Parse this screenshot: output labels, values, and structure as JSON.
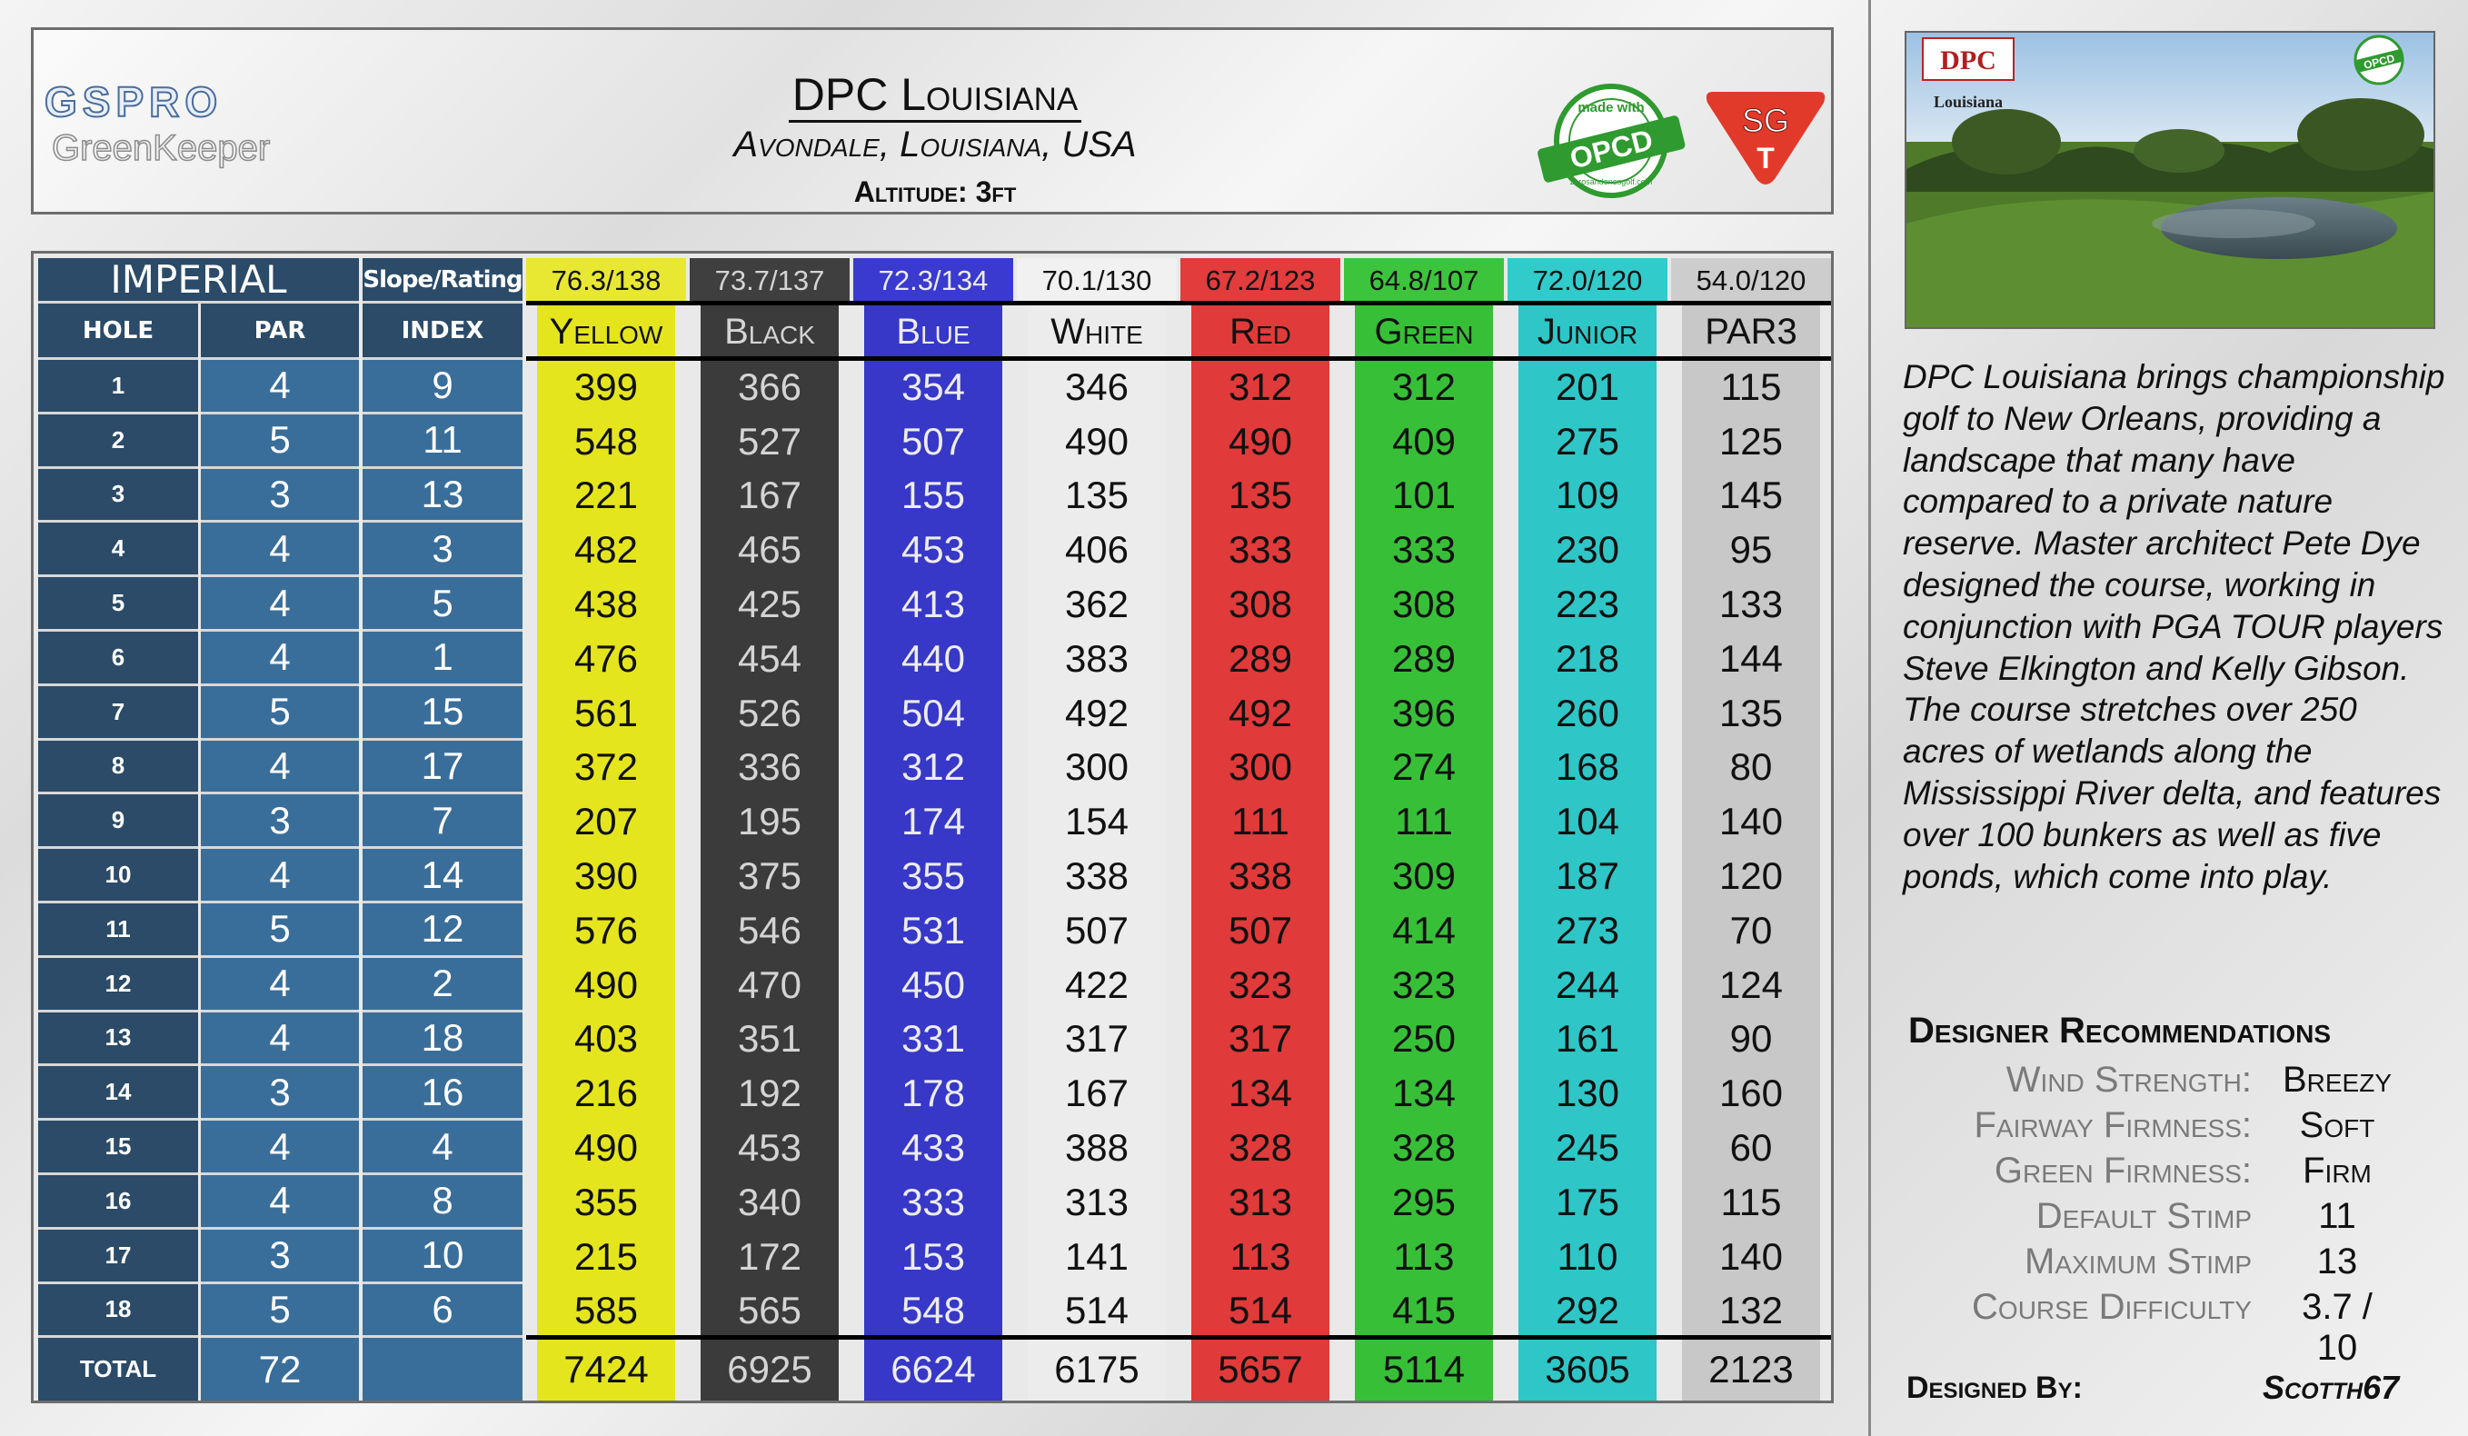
{
  "branding": {
    "gspro": "GSPRO",
    "greenkeeper": "GreenKeeper",
    "opcd_top": "made with",
    "opcd_main": "OPCD",
    "opcd_bottom": "zerosandonesgolf.com",
    "sgt_top": "SG",
    "sgt_bottom": "T"
  },
  "course": {
    "name": "DPC Louisiana",
    "location": "Avondale, Louisiana, USA",
    "altitude": "Altitude: 3ft"
  },
  "table": {
    "unit_label": "IMPERIAL",
    "slope_label": "Slope/Rating",
    "col_hole": "HOLE",
    "col_par": "PAR",
    "col_index": "INDEX",
    "total_label": "TOTAL",
    "total_par": "72",
    "holes": [
      "1",
      "2",
      "3",
      "4",
      "5",
      "6",
      "7",
      "8",
      "9",
      "10",
      "11",
      "12",
      "13",
      "14",
      "15",
      "16",
      "17",
      "18"
    ],
    "pars": [
      "4",
      "5",
      "3",
      "4",
      "4",
      "4",
      "5",
      "4",
      "3",
      "4",
      "5",
      "4",
      "4",
      "3",
      "4",
      "4",
      "3",
      "5"
    ],
    "indexes": [
      "9",
      "11",
      "13",
      "3",
      "5",
      "1",
      "15",
      "17",
      "7",
      "14",
      "12",
      "2",
      "18",
      "16",
      "4",
      "8",
      "10",
      "6"
    ],
    "tees": [
      {
        "name": "Yellow",
        "rating": "76.3/138",
        "total": "7424",
        "band": "#e5e51e",
        "header_bg": "#e8e832",
        "text": "#111111",
        "yards": [
          "399",
          "548",
          "221",
          "482",
          "438",
          "476",
          "561",
          "372",
          "207",
          "390",
          "576",
          "490",
          "403",
          "216",
          "490",
          "355",
          "215",
          "585"
        ]
      },
      {
        "name": "Black",
        "rating": "73.7/137",
        "total": "6925",
        "band": "#3b3b3b",
        "header_bg": "#3f3f3f",
        "text": "#d4d4d4",
        "yards": [
          "366",
          "527",
          "167",
          "465",
          "425",
          "454",
          "526",
          "336",
          "195",
          "375",
          "546",
          "470",
          "351",
          "192",
          "453",
          "340",
          "172",
          "565"
        ]
      },
      {
        "name": "Blue",
        "rating": "72.3/134",
        "total": "6624",
        "band": "#3737c8",
        "header_bg": "#3a3ad0",
        "text": "#ececec",
        "yards": [
          "354",
          "507",
          "155",
          "453",
          "413",
          "440",
          "504",
          "312",
          "174",
          "355",
          "531",
          "450",
          "331",
          "178",
          "433",
          "333",
          "153",
          "548"
        ]
      },
      {
        "name": "White",
        "rating": "70.1/130",
        "total": "6175",
        "band": "#ececec",
        "header_bg": "#f1f1f1",
        "text": "#111111",
        "yards": [
          "346",
          "490",
          "135",
          "406",
          "362",
          "383",
          "492",
          "300",
          "154",
          "338",
          "507",
          "422",
          "317",
          "167",
          "388",
          "313",
          "141",
          "514"
        ]
      },
      {
        "name": "Red",
        "rating": "67.2/123",
        "total": "5657",
        "band": "#e03a3a",
        "header_bg": "#e23c3c",
        "text": "#111111",
        "yards": [
          "312",
          "490",
          "135",
          "333",
          "308",
          "289",
          "492",
          "300",
          "111",
          "338",
          "507",
          "323",
          "317",
          "134",
          "328",
          "313",
          "113",
          "514"
        ]
      },
      {
        "name": "Green",
        "rating": "64.8/107",
        "total": "5114",
        "band": "#38bf38",
        "header_bg": "#3cc43c",
        "text": "#111111",
        "yards": [
          "312",
          "409",
          "101",
          "333",
          "308",
          "289",
          "396",
          "274",
          "111",
          "309",
          "414",
          "323",
          "250",
          "134",
          "328",
          "295",
          "113",
          "415"
        ]
      },
      {
        "name": "Junior",
        "rating": "72.0/120",
        "total": "3605",
        "band": "#2ec6c6",
        "header_bg": "#32cbcb",
        "text": "#111111",
        "yards": [
          "201",
          "275",
          "109",
          "230",
          "223",
          "218",
          "260",
          "168",
          "104",
          "187",
          "273",
          "244",
          "161",
          "130",
          "245",
          "175",
          "110",
          "292"
        ]
      },
      {
        "name": "PAR3",
        "rating": "54.0/120",
        "total": "2123",
        "band": "#c8c8c8",
        "header_bg": "#cdcdcd",
        "text": "#111111",
        "yards": [
          "115",
          "125",
          "145",
          "95",
          "133",
          "144",
          "135",
          "80",
          "140",
          "120",
          "70",
          "124",
          "90",
          "160",
          "60",
          "115",
          "140",
          "132"
        ]
      }
    ]
  },
  "image": {
    "logo_text": "DPC",
    "logo_sub": "Louisiana",
    "opcd_text": "OPCD"
  },
  "description": "DPC Louisiana brings championship golf to New Orleans, providing a landscape that many have compared to a private nature reserve.  Master architect Pete Dye designed the course, working in conjunction with PGA TOUR players Steve Elkington and Kelly Gibson.  The course stretches over 250 acres of wetlands along the Mississippi River delta, and features over 100 bunkers as well as five ponds, which come into play.",
  "recommendations": {
    "title": "Designer Recommendations",
    "items": [
      {
        "label": "Wind Strength:",
        "value": "Breezy"
      },
      {
        "label": "Fairway Firmness:",
        "value": "Soft"
      },
      {
        "label": "Green Firmness:",
        "value": "Firm"
      },
      {
        "label": "Default Stimp",
        "value": "11"
      },
      {
        "label": "Maximum Stimp",
        "value": "13"
      },
      {
        "label": "Course Difficulty",
        "value": "3.7 / 10"
      }
    ]
  },
  "designer": {
    "label": "Designed By:",
    "value": "Scotth67"
  }
}
